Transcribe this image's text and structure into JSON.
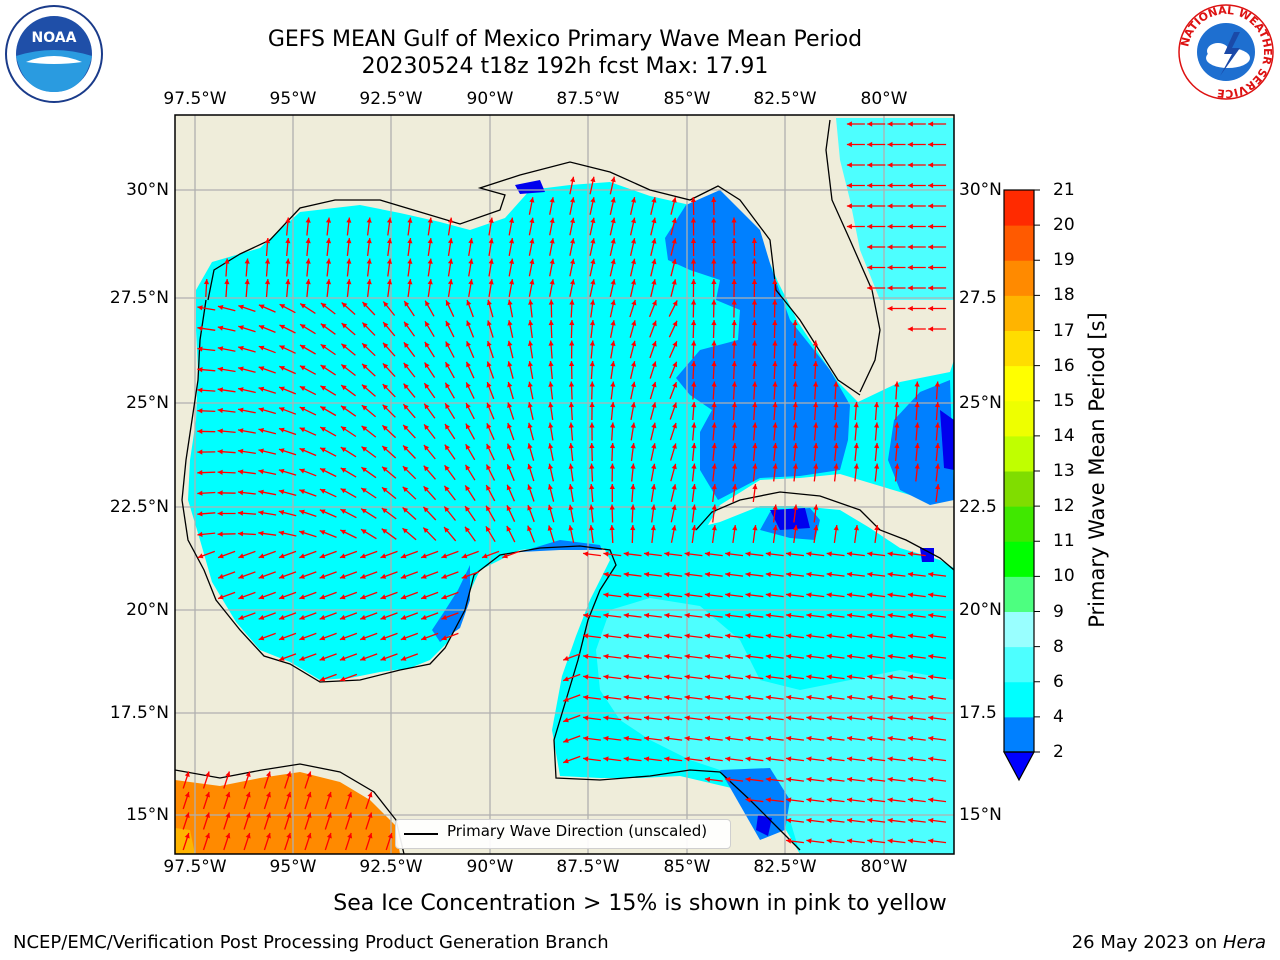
{
  "title": {
    "line1": "GEFS MEAN Gulf of Mexico Primary Wave Mean Period",
    "line2": "20230524 t18z 192h fcst   Max: 17.91"
  },
  "map": {
    "lon_ticks": [
      "97.5°W",
      "95°W",
      "92.5°W",
      "90°W",
      "87.5°W",
      "85°W",
      "82.5°W",
      "80°W"
    ],
    "lat_ticks_left": [
      "30°N",
      "27.5°N",
      "25°N",
      "22.5°N",
      "20°N",
      "17.5°N",
      "15°N"
    ],
    "lat_ticks_right": [
      "30°N",
      "27.5",
      "25°N",
      "22.5",
      "20°N",
      "17.5",
      "15°N"
    ],
    "lon_range": [
      -98,
      -78.2
    ],
    "lat_range": [
      14,
      31.6
    ],
    "colors": {
      "land": "#efedda",
      "ocean_4_6": "#00ffff",
      "ocean_2_4": "#0080ff",
      "ocean_6_8": "#4dffff",
      "ocean_lt2": "#0000ee",
      "pacific_16_18": "#ff8a00",
      "pacific_16": "#ffb400",
      "arrow": "#ff0000",
      "grid": "#b0b0b0"
    }
  },
  "legend": {
    "label": "Primary Wave Direction (unscaled)"
  },
  "colorbar": {
    "label": "Primary Wave Mean Period [s]",
    "levels": [
      2,
      4,
      6,
      8,
      9,
      10,
      11,
      12,
      13,
      14,
      15,
      16,
      17,
      18,
      19,
      20,
      21
    ],
    "colors": [
      "#0080ff",
      "#00ffff",
      "#4dffff",
      "#99ffff",
      "#4dff80",
      "#00ff00",
      "#40e800",
      "#80dd00",
      "#c0ff00",
      "#eeff00",
      "#ffff00",
      "#ffdd00",
      "#ffb400",
      "#ff8a00",
      "#ff5a00",
      "#ff2a00",
      "#ff0000"
    ],
    "under_color": "#0000ff"
  },
  "bottom_note": "Sea Ice Concentration > 15% is shown in pink to yellow",
  "footer": {
    "left": "NCEP/EMC/Verification Post Processing Product Generation Branch",
    "right_prefix": "26 May 2023 on ",
    "right_machine": "Hera"
  },
  "logos": {
    "noaa_text": "NOAA",
    "nws_ring": "NATIONAL WEATHER SERVICE"
  }
}
